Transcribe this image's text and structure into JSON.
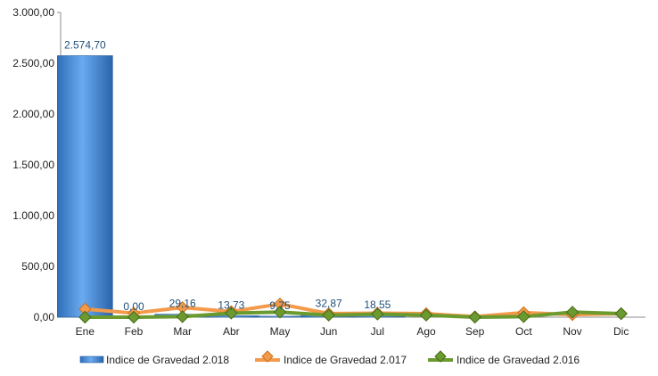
{
  "chart_data": {
    "type": "bar",
    "categories": [
      "Ene",
      "Feb",
      "Mar",
      "Abr",
      "May",
      "Jun",
      "Jul",
      "Ago",
      "Sep",
      "Oct",
      "Nov",
      "Dic"
    ],
    "ylim": [
      0,
      3000
    ],
    "yticks": [
      "0,00",
      "500,00",
      "1.000,00",
      "1.500,00",
      "2.000,00",
      "2.500,00",
      "3.000,00"
    ],
    "ytick_values": [
      0,
      500,
      1000,
      1500,
      2000,
      2500,
      3000
    ],
    "grid": false,
    "legend_position": "bottom",
    "series": [
      {
        "name": "Indice de Gravedad 2.018",
        "type": "bar",
        "color": "#4a8fd6",
        "values": [
          2574.7,
          0.0,
          29.16,
          13.73,
          9.75,
          32.87,
          18.55,
          null,
          null,
          null,
          null,
          null
        ],
        "labels": [
          "2.574,70",
          "0,00",
          "29,16",
          "13,73",
          "9,75",
          "32,87",
          "18,55",
          "",
          "",
          "",
          "",
          ""
        ]
      },
      {
        "name": "Indice de Gravedad 2.017",
        "type": "line",
        "color": "#f39a4b",
        "values": [
          80,
          40,
          95,
          55,
          130,
          35,
          40,
          35,
          5,
          45,
          25,
          35
        ]
      },
      {
        "name": "Indice de Gravedad 2.016",
        "type": "line",
        "color": "#6b9a2e",
        "values": [
          0,
          0,
          5,
          40,
          50,
          20,
          30,
          20,
          0,
          5,
          50,
          35
        ]
      }
    ]
  }
}
